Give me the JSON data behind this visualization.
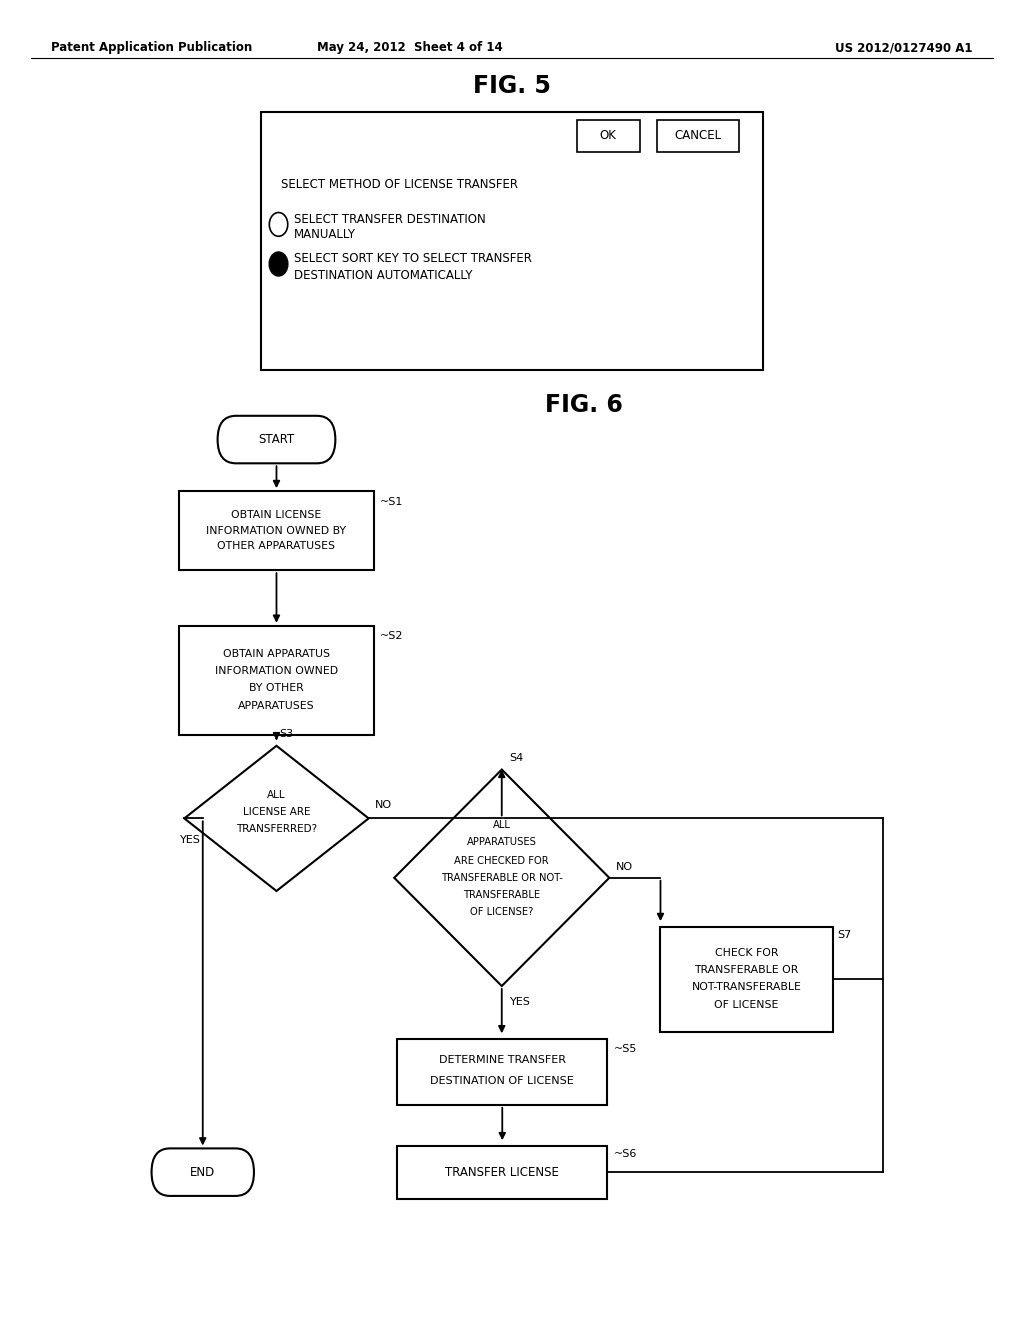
{
  "bg_color": "#ffffff",
  "header_left": "Patent Application Publication",
  "header_mid": "May 24, 2012  Sheet 4 of 14",
  "header_right": "US 2012/0127490 A1"
}
